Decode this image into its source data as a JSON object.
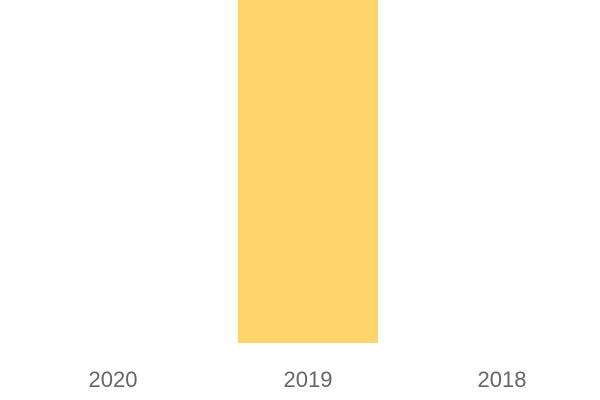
{
  "chart_data": {
    "type": "bar",
    "categories": [
      "2020",
      "2019",
      "2018"
    ],
    "values": [
      0,
      1,
      0
    ],
    "ylim": [
      0,
      1
    ],
    "grid": false,
    "bar_color": "#FFD56B",
    "tick_color": "#666666"
  }
}
